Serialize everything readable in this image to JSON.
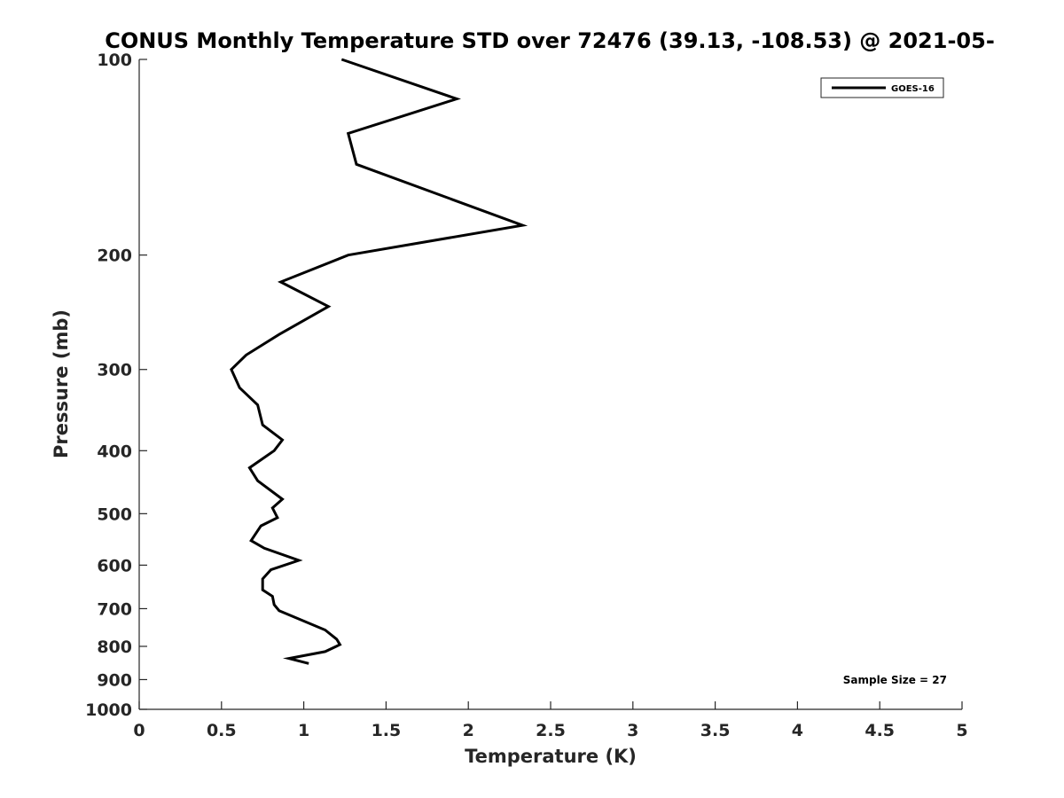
{
  "chart_data": {
    "type": "line",
    "title": "CONUS Monthly Temperature STD over 72476 (39.13, -108.53) @ 2021-05-",
    "xlabel": "Temperature (K)",
    "ylabel": "Pressure (mb)",
    "xlim": [
      0,
      5
    ],
    "ylim": [
      100,
      1000
    ],
    "yscale": "log",
    "y_reversed": true,
    "xticks": [
      0,
      0.5,
      1,
      1.5,
      2,
      2.5,
      3,
      3.5,
      4,
      4.5,
      5
    ],
    "xtick_labels": [
      "0",
      "0.5",
      "1",
      "1.5",
      "2",
      "2.5",
      "3",
      "3.5",
      "4",
      "4.5",
      "5"
    ],
    "yticks": [
      100,
      200,
      300,
      400,
      500,
      600,
      700,
      800,
      900,
      1000
    ],
    "ytick_labels": [
      "100",
      "200",
      "300",
      "400",
      "500",
      "600",
      "700",
      "800",
      "900",
      "1000"
    ],
    "grid": false,
    "legend_position": "top-right",
    "annotation": "Sample Size = 27",
    "series": [
      {
        "name": "GOES-16",
        "color": "#000000",
        "points": [
          {
            "x": 1.23,
            "y": 100
          },
          {
            "x": 1.93,
            "y": 115
          },
          {
            "x": 1.27,
            "y": 130
          },
          {
            "x": 1.32,
            "y": 145
          },
          {
            "x": 2.33,
            "y": 180
          },
          {
            "x": 1.27,
            "y": 200
          },
          {
            "x": 0.86,
            "y": 220
          },
          {
            "x": 1.15,
            "y": 240
          },
          {
            "x": 0.85,
            "y": 265
          },
          {
            "x": 0.65,
            "y": 285
          },
          {
            "x": 0.56,
            "y": 300
          },
          {
            "x": 0.61,
            "y": 320
          },
          {
            "x": 0.72,
            "y": 340
          },
          {
            "x": 0.75,
            "y": 365
          },
          {
            "x": 0.87,
            "y": 385
          },
          {
            "x": 0.82,
            "y": 400
          },
          {
            "x": 0.67,
            "y": 425
          },
          {
            "x": 0.72,
            "y": 445
          },
          {
            "x": 0.87,
            "y": 475
          },
          {
            "x": 0.81,
            "y": 490
          },
          {
            "x": 0.84,
            "y": 507
          },
          {
            "x": 0.74,
            "y": 522
          },
          {
            "x": 0.68,
            "y": 550
          },
          {
            "x": 0.76,
            "y": 565
          },
          {
            "x": 0.97,
            "y": 590
          },
          {
            "x": 0.8,
            "y": 610
          },
          {
            "x": 0.75,
            "y": 630
          },
          {
            "x": 0.75,
            "y": 655
          },
          {
            "x": 0.81,
            "y": 670
          },
          {
            "x": 0.82,
            "y": 690
          },
          {
            "x": 0.85,
            "y": 705
          },
          {
            "x": 1.13,
            "y": 755
          },
          {
            "x": 1.2,
            "y": 780
          },
          {
            "x": 1.22,
            "y": 795
          },
          {
            "x": 1.13,
            "y": 815
          },
          {
            "x": 0.91,
            "y": 835
          },
          {
            "x": 1.03,
            "y": 850
          }
        ]
      }
    ]
  }
}
